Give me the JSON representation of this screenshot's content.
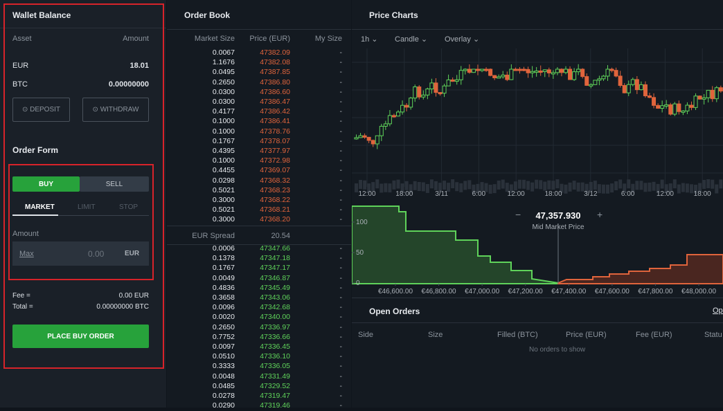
{
  "wallet": {
    "title": "Wallet Balance",
    "headers": [
      "Asset",
      "Amount"
    ],
    "rows": [
      [
        "EUR",
        "18.01"
      ],
      [
        "BTC",
        "0.00000000"
      ]
    ],
    "buttons": [
      "DEPOSIT",
      "WITHDRAW"
    ]
  },
  "order_form": {
    "title": "Order Form",
    "sides": [
      "BUY",
      "SELL"
    ],
    "types": [
      "MARKET",
      "LIMIT",
      "STOP"
    ],
    "amount_label": "Amount",
    "max": "Max",
    "amount": "0.00",
    "currency": "EUR",
    "fee_label": "Fee =",
    "fee": "0.00 EUR",
    "total_label": "Total =",
    "total": "0.00000000 BTC",
    "submit": "PLACE BUY ORDER"
  },
  "order_book": {
    "title": "Order Book",
    "headers": [
      "Market Size",
      "Price (EUR)",
      "My Size"
    ],
    "asks": [
      [
        "0.0067",
        "47382.09",
        "-"
      ],
      [
        "1.1676",
        "47382.08",
        "-"
      ],
      [
        "0.0495",
        "47387.85",
        "-"
      ],
      [
        "0.2650",
        "47386.80",
        "-"
      ],
      [
        "0.0300",
        "47386.60",
        "-"
      ],
      [
        "0.0300",
        "47386.47",
        "-"
      ],
      [
        "0.4177",
        "47386.42",
        "-"
      ],
      [
        "0.1000",
        "47386.41",
        "-"
      ],
      [
        "0.1000",
        "47378.76",
        "-"
      ],
      [
        "0.1767",
        "47378.07",
        "-"
      ],
      [
        "0.4395",
        "47377.97",
        "-"
      ],
      [
        "0.1000",
        "47372.98",
        "-"
      ],
      [
        "0.4455",
        "47369.07",
        "-"
      ],
      [
        "0.0298",
        "47368.32",
        "-"
      ],
      [
        "0.5021",
        "47368.23",
        "-"
      ],
      [
        "0.3000",
        "47368.22",
        "-"
      ],
      [
        "0.5021",
        "47368.21",
        "-"
      ],
      [
        "0.3000",
        "47368.20",
        "-"
      ]
    ],
    "spread_label": "EUR Spread",
    "spread": "20.54",
    "bids": [
      [
        "0.0006",
        "47347.66",
        "-"
      ],
      [
        "0.1378",
        "47347.18",
        "-"
      ],
      [
        "0.1767",
        "47347.17",
        "-"
      ],
      [
        "0.0049",
        "47346.87",
        "-"
      ],
      [
        "0.4836",
        "47345.49",
        "-"
      ],
      [
        "0.3658",
        "47343.06",
        "-"
      ],
      [
        "0.0096",
        "47342.68",
        "-"
      ],
      [
        "0.0020",
        "47340.00",
        "-"
      ],
      [
        "0.2650",
        "47336.97",
        "-"
      ],
      [
        "0.7752",
        "47336.66",
        "-"
      ],
      [
        "0.0097",
        "47336.45",
        "-"
      ],
      [
        "0.0510",
        "47336.10",
        "-"
      ],
      [
        "0.3333",
        "47336.05",
        "-"
      ],
      [
        "0.0048",
        "47331.49",
        "-"
      ],
      [
        "0.0485",
        "47329.52",
        "-"
      ],
      [
        "0.0278",
        "47319.47",
        "-"
      ],
      [
        "0.0290",
        "47319.46",
        "-"
      ]
    ]
  },
  "price_charts": {
    "title": "Price Charts",
    "controls": [
      "1h",
      "Candle",
      "Overlay"
    ],
    "time_labels": [
      "12:00",
      "18:00",
      "3/11",
      "6:00",
      "12:00",
      "18:00",
      "3/12",
      "6:00",
      "12:00",
      "18:00"
    ],
    "depth": {
      "yticks": [
        0,
        50,
        100
      ],
      "xticks": [
        {
          "value": 46600,
          "label": "€46,600.00"
        },
        {
          "value": 46800,
          "label": "€46,800.00"
        },
        {
          "value": 47000,
          "label": "€47,000.00"
        },
        {
          "value": 47200,
          "label": "€47,200.00"
        },
        {
          "value": 47400,
          "label": "€47,400.00"
        },
        {
          "value": 47600,
          "label": "€47,600.00"
        },
        {
          "value": 47800,
          "label": "€47,800.00"
        },
        {
          "value": 48000,
          "label": "€48,000.00"
        }
      ],
      "mid_price": "47,357.930",
      "mid_label": "Mid Market Price"
    }
  },
  "open_orders": {
    "title": "Open Orders",
    "tab": "Ope",
    "headers": [
      "Side",
      "Size",
      "Filled (BTC)",
      "Price (EUR)",
      "Fee (EUR)",
      "Statu"
    ],
    "empty": "No orders to show"
  }
}
